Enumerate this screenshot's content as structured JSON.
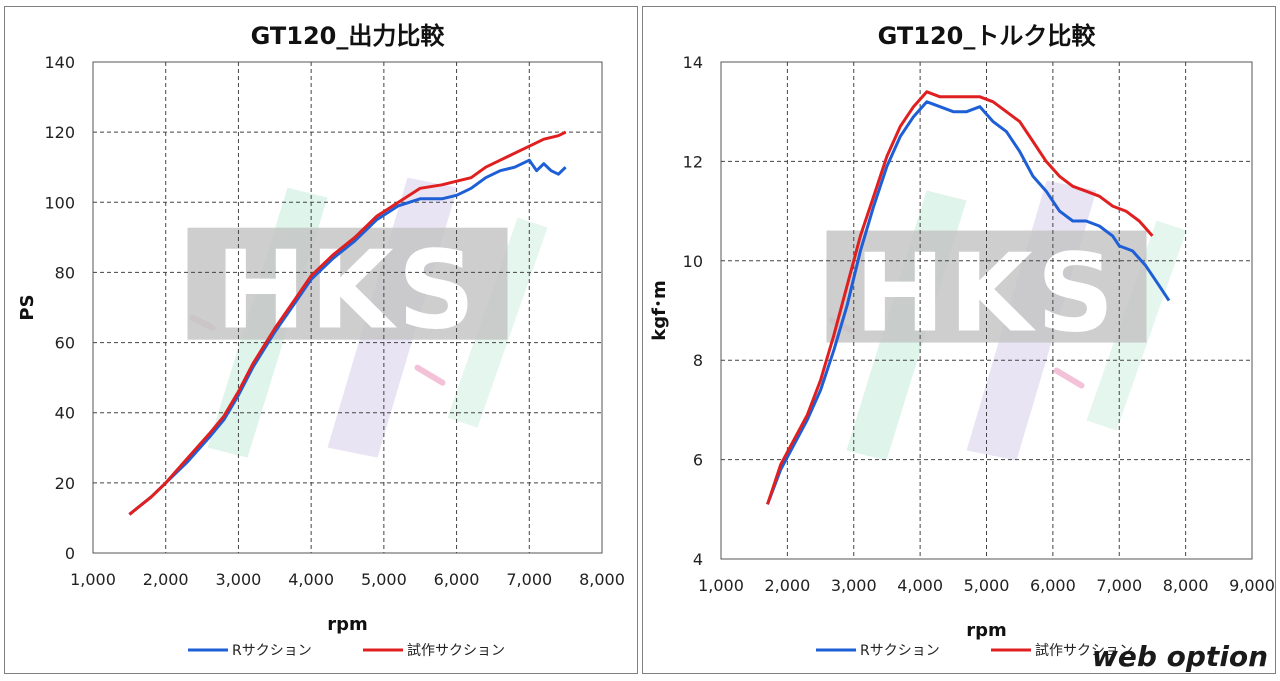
{
  "chart_data": [
    {
      "type": "line",
      "title": "GT120_出力比較",
      "xlabel": "rpm",
      "ylabel": "PS",
      "xlim": [
        1000,
        8000
      ],
      "ylim": [
        0,
        140
      ],
      "xticks": [
        1000,
        2000,
        3000,
        4000,
        5000,
        6000,
        7000,
        8000
      ],
      "xtick_labels": [
        "1,000",
        "2,000",
        "3,000",
        "4,000",
        "5,000",
        "6,000",
        "7,000",
        "8,000"
      ],
      "yticks": [
        0,
        20,
        40,
        60,
        80,
        100,
        120,
        140
      ],
      "ytick_labels": [
        "0",
        "20",
        "40",
        "60",
        "80",
        "100",
        "120",
        "140"
      ],
      "grid": true,
      "legend_position": "bottom",
      "watermark": "HKS",
      "series": [
        {
          "name": "Rサクション",
          "color": "#1f5fd6",
          "x": [
            1500,
            1800,
            2000,
            2300,
            2600,
            2800,
            3000,
            3200,
            3500,
            3800,
            4000,
            4300,
            4600,
            4900,
            5200,
            5500,
            5800,
            6000,
            6200,
            6400,
            6600,
            6800,
            7000,
            7100,
            7200,
            7300,
            7400,
            7500
          ],
          "y": [
            11,
            16,
            20,
            26,
            33,
            38,
            45,
            53,
            63,
            72,
            78,
            84,
            89,
            95,
            99,
            101,
            101,
            102,
            104,
            107,
            109,
            110,
            112,
            109,
            111,
            109,
            108,
            110
          ]
        },
        {
          "name": "試作サクション",
          "color": "#e02020",
          "x": [
            1500,
            1800,
            2000,
            2300,
            2600,
            2800,
            3000,
            3200,
            3500,
            3800,
            4000,
            4300,
            4600,
            4900,
            5200,
            5500,
            5800,
            6000,
            6200,
            6400,
            6600,
            6800,
            7000,
            7200,
            7400,
            7500
          ],
          "y": [
            11,
            16,
            20,
            27,
            34,
            39,
            46,
            54,
            64,
            73,
            79,
            85,
            90,
            96,
            100,
            104,
            105,
            106,
            107,
            110,
            112,
            114,
            116,
            118,
            119,
            120
          ]
        }
      ]
    },
    {
      "type": "line",
      "title": "GT120_トルク比較",
      "xlabel": "rpm",
      "ylabel": "kgf･m",
      "xlim": [
        1000,
        9000
      ],
      "ylim": [
        4,
        14
      ],
      "xticks": [
        1000,
        2000,
        3000,
        4000,
        5000,
        6000,
        7000,
        8000,
        9000
      ],
      "xtick_labels": [
        "1,000",
        "2,000",
        "3,000",
        "4,000",
        "5,000",
        "6,000",
        "7,000",
        "8,000",
        "9,000"
      ],
      "yticks": [
        4,
        6,
        8,
        10,
        12,
        14
      ],
      "ytick_labels": [
        "4",
        "6",
        "8",
        "10",
        "12",
        "14"
      ],
      "grid": true,
      "legend_position": "bottom",
      "watermark": "HKS",
      "series": [
        {
          "name": "Rサクション",
          "color": "#1f5fd6",
          "x": [
            1700,
            1900,
            2100,
            2300,
            2500,
            2700,
            2900,
            3100,
            3300,
            3500,
            3700,
            3900,
            4100,
            4300,
            4500,
            4700,
            4900,
            5100,
            5300,
            5500,
            5700,
            5900,
            6100,
            6300,
            6500,
            6700,
            6900,
            7000,
            7200,
            7400,
            7600,
            7750
          ],
          "y": [
            5.1,
            5.8,
            6.3,
            6.8,
            7.4,
            8.2,
            9.1,
            10.2,
            11.1,
            11.9,
            12.5,
            12.9,
            13.2,
            13.1,
            13.0,
            13.0,
            13.1,
            12.8,
            12.6,
            12.2,
            11.7,
            11.4,
            11.0,
            10.8,
            10.8,
            10.7,
            10.5,
            10.3,
            10.2,
            9.9,
            9.5,
            9.2
          ]
        },
        {
          "name": "試作サクション",
          "color": "#e02020",
          "x": [
            1700,
            1900,
            2100,
            2300,
            2500,
            2700,
            2900,
            3100,
            3300,
            3500,
            3700,
            3900,
            4100,
            4300,
            4500,
            4700,
            4900,
            5100,
            5300,
            5500,
            5700,
            5900,
            6100,
            6300,
            6500,
            6700,
            6900,
            7100,
            7300,
            7500
          ],
          "y": [
            5.1,
            5.9,
            6.4,
            6.9,
            7.6,
            8.5,
            9.5,
            10.5,
            11.3,
            12.1,
            12.7,
            13.1,
            13.4,
            13.3,
            13.3,
            13.3,
            13.3,
            13.2,
            13.0,
            12.8,
            12.4,
            12.0,
            11.7,
            11.5,
            11.4,
            11.3,
            11.1,
            11.0,
            10.8,
            10.5
          ]
        }
      ]
    }
  ],
  "brand_logo": "web option"
}
